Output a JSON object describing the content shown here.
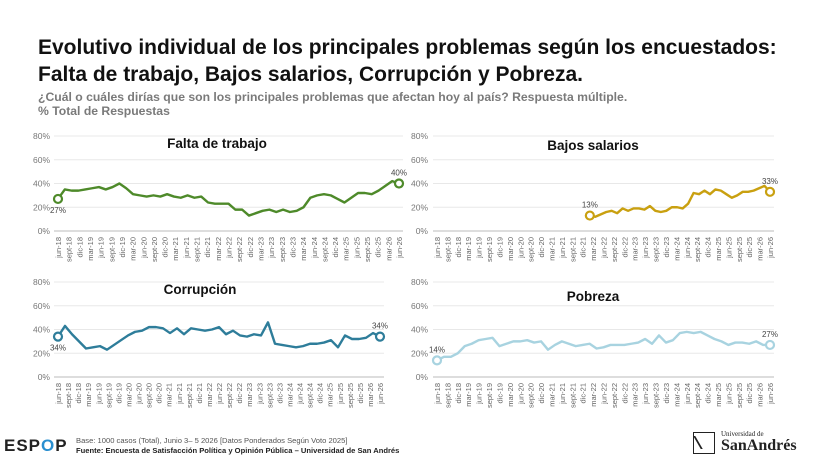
{
  "header": {
    "title_line1": "Evolutivo individual de los principales problemas según los encuestados:",
    "title_line2": "Falta de trabajo, Bajos salarios, Corrupción y Pobreza.",
    "subtitle": "¿Cuál o cuáles dirías que son los principales problemas que afectan hoy al país? Respuesta múltiple.",
    "subtitle2": "% Total de Respuestas"
  },
  "footer": {
    "logo_part1": "ESP",
    "logo_part2": "O",
    "logo_part3": "P",
    "base": "Base: 1000 casos (Total), Junio 3– 5 2026 [Datos Ponderados Según Voto 2025]",
    "source": "Fuente: Encuesta de Satisfacción Política y Opinión Pública – Universidad de San Andrés",
    "university_small": "Universidad de",
    "university_name": "SanAndrés"
  },
  "chart_data": [
    {
      "type": "line",
      "title": "Falta de trabajo",
      "color": "#4e8a2a",
      "ylim": [
        0,
        80
      ],
      "yticks": [
        "0%",
        "20%",
        "40%",
        "60%",
        "80%"
      ],
      "xtick_labels": [
        "jun-18",
        "sept-18",
        "dic-18",
        "mar-19",
        "jun-19",
        "sept-19",
        "dic-19",
        "mar-20",
        "jun-20",
        "sept-20",
        "dic-20",
        "mar-21",
        "jun-21",
        "sept-21",
        "dic-21",
        "mar-22",
        "jun-22",
        "sept-22",
        "dic-22",
        "mar-23",
        "jun-23",
        "sept-23",
        "dic-23",
        "mar-24",
        "jun-24",
        "sept-24",
        "dic-24",
        "mar-25",
        "jun-25",
        "sept-25",
        "dic-25",
        "mar-26",
        "jun-26"
      ],
      "first_label": "27%",
      "last_label": "40%",
      "values": [
        27,
        35,
        34,
        34,
        35,
        36,
        37,
        35,
        37,
        40,
        36,
        31,
        30,
        29,
        30,
        29,
        31,
        29,
        28,
        30,
        28,
        29,
        24,
        23,
        23,
        23,
        18,
        18,
        13,
        15,
        17,
        18,
        16,
        18,
        16,
        17,
        20,
        28,
        30,
        31,
        30,
        27,
        24,
        28,
        32,
        32,
        31,
        34,
        38,
        42,
        40
      ]
    },
    {
      "type": "line",
      "title": "Bajos salarios",
      "color": "#c9a010",
      "ylim": [
        0,
        80
      ],
      "yticks": [
        "0%",
        "20%",
        "40%",
        "60%",
        "80%"
      ],
      "xtick_labels": [
        "jun-18",
        "sept-18",
        "dic-18",
        "mar-19",
        "jun-19",
        "sept-19",
        "dic-19",
        "mar-20",
        "jun-20",
        "sept-20",
        "dic-20",
        "mar-21",
        "jun-21",
        "sept-21",
        "dic-21",
        "mar-22",
        "jun-22",
        "sept-22",
        "dic-22",
        "mar-23",
        "jun-23",
        "sept-23",
        "dic-23",
        "mar-24",
        "jun-24",
        "sept-24",
        "dic-24",
        "mar-25",
        "jun-25",
        "sept-25",
        "dic-25",
        "mar-26",
        "jun-26"
      ],
      "first_label": "13%",
      "last_label": "33%",
      "values": [
        null,
        null,
        null,
        null,
        null,
        null,
        null,
        null,
        null,
        null,
        null,
        null,
        null,
        null,
        null,
        null,
        null,
        null,
        null,
        null,
        null,
        null,
        null,
        null,
        null,
        null,
        null,
        null,
        13,
        12,
        14,
        16,
        17,
        15,
        19,
        17,
        19,
        19,
        18,
        21,
        17,
        16,
        17,
        20,
        20,
        19,
        23,
        32,
        31,
        34,
        31,
        35,
        34,
        31,
        28,
        30,
        33,
        33,
        34,
        36,
        38,
        33
      ]
    },
    {
      "type": "line",
      "title": "Corrupción",
      "color": "#2e7d9a",
      "ylim": [
        0,
        80
      ],
      "yticks": [
        "0%",
        "20%",
        "40%",
        "60%",
        "80%"
      ],
      "xtick_labels": [
        "jun-18",
        "sept-18",
        "dic-18",
        "mar-19",
        "jun-19",
        "sept-19",
        "dic-19",
        "mar-20",
        "jun-20",
        "sept-20",
        "dic-20",
        "mar-21",
        "jun-21",
        "sept-21",
        "dic-21",
        "mar-22",
        "jun-22",
        "sept-22",
        "dic-22",
        "mar-23",
        "jun-23",
        "sept-23",
        "dic-23",
        "mar-24",
        "jun-24",
        "sept-24",
        "dic-24",
        "mar-25",
        "jun-25",
        "sept-25",
        "dic-25",
        "mar-26",
        "jun-26"
      ],
      "first_label": "34%",
      "last_label": "34%",
      "values": [
        34,
        43,
        36,
        30,
        24,
        25,
        26,
        23,
        27,
        31,
        35,
        38,
        39,
        42,
        42,
        41,
        37,
        41,
        36,
        41,
        40,
        39,
        40,
        42,
        36,
        39,
        35,
        34,
        36,
        35,
        46,
        28,
        27,
        26,
        25,
        26,
        28,
        28,
        29,
        31,
        25,
        35,
        32,
        32,
        33,
        37,
        34
      ]
    },
    {
      "type": "line",
      "title": "Pobreza",
      "color": "#a8d3e0",
      "ylim": [
        0,
        80
      ],
      "yticks": [
        "0%",
        "20%",
        "40%",
        "60%",
        "80%"
      ],
      "xtick_labels": [
        "jun-18",
        "sept-18",
        "dic-18",
        "mar-19",
        "jun-19",
        "sept-19",
        "dic-19",
        "mar-20",
        "jun-20",
        "sept-20",
        "dic-20",
        "mar-21",
        "jun-21",
        "sept-21",
        "dic-21",
        "mar-22",
        "jun-22",
        "sept-22",
        "dic-22",
        "mar-23",
        "jun-23",
        "sept-23",
        "dic-23",
        "mar-24",
        "jun-24",
        "sept-24",
        "dic-24",
        "mar-25",
        "jun-25",
        "sept-25",
        "dic-25",
        "mar-26",
        "jun-26"
      ],
      "first_label": "14%",
      "last_label": "27%",
      "values": [
        14,
        17,
        17,
        20,
        26,
        28,
        31,
        32,
        33,
        26,
        28,
        30,
        30,
        31,
        29,
        30,
        23,
        27,
        30,
        28,
        26,
        27,
        28,
        24,
        25,
        27,
        27,
        27,
        28,
        29,
        32,
        28,
        35,
        29,
        31,
        37,
        38,
        37,
        38,
        35,
        32,
        30,
        27,
        29,
        29,
        28,
        30,
        27,
        27
      ]
    }
  ]
}
